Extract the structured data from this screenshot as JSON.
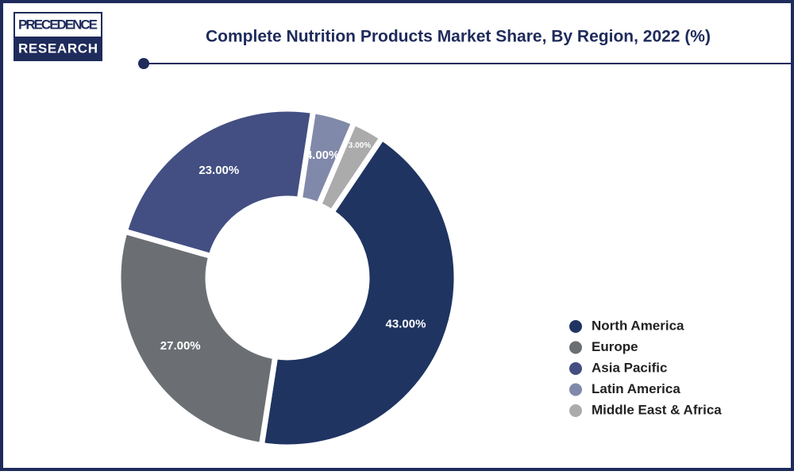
{
  "logo": {
    "top": "PRECEDENCE",
    "bottom": "RESEARCH"
  },
  "chart_data": {
    "type": "donut",
    "title": "Complete Nutrition Products Market Share, By Region, 2022 (%)",
    "categories": [
      "North America",
      "Europe",
      "Asia Pacific",
      "Latin America",
      "Middle East & Africa"
    ],
    "values": [
      43,
      27,
      23,
      4,
      3
    ],
    "value_labels": [
      "43.00%",
      "27.00%",
      "23.00%",
      "4.00%",
      "3.00%"
    ],
    "colors": [
      "#1f3461",
      "#6b6f74",
      "#434f82",
      "#8189aa",
      "#ababab"
    ],
    "legend": "right"
  }
}
